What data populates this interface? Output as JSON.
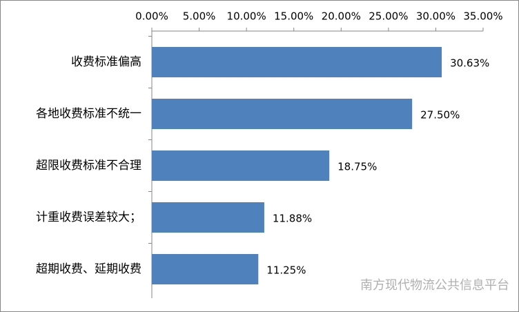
{
  "chart_data": {
    "type": "bar",
    "orientation": "horizontal",
    "categories": [
      "收费标准偏高",
      "各地收费标准不统一",
      "超限收费标准不合理",
      "计重收费误差较大；",
      "超期收费、延期收费"
    ],
    "values": [
      30.63,
      27.5,
      18.75,
      11.88,
      11.25
    ],
    "value_labels": [
      "30.63%",
      "27.50%",
      "18.75%",
      "11.88%",
      "11.25%"
    ],
    "color": "#4f81bd",
    "xlim": [
      0,
      35
    ],
    "xticks": [
      {
        "value": 0,
        "label": "0.00%"
      },
      {
        "value": 5,
        "label": "5.00%"
      },
      {
        "value": 10,
        "label": "10.00%"
      },
      {
        "value": 15,
        "label": "15.00%"
      },
      {
        "value": 20,
        "label": "20.00%"
      },
      {
        "value": 25,
        "label": "25.00%"
      },
      {
        "value": 30,
        "label": "30.00%"
      },
      {
        "value": 35,
        "label": "35.00%"
      }
    ],
    "grid": false,
    "watermark": "南方现代物流公共信息平台"
  }
}
